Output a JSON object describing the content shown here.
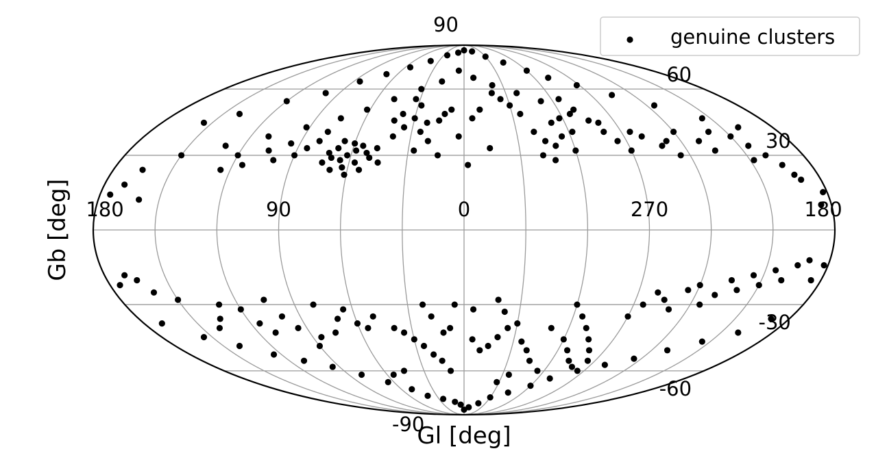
{
  "chart_data": {
    "type": "scatter",
    "projection": "mollweide",
    "xlabel": "Gl [deg]",
    "ylabel": "Gb [deg]",
    "xlim": [
      -180,
      180
    ],
    "ylim": [
      -90,
      90
    ],
    "grid": true,
    "legend_position": "top-right",
    "x_tick_labels": [
      {
        "lon": 180,
        "label": "180"
      },
      {
        "lon": 90,
        "label": "90"
      },
      {
        "lon": 0,
        "label": "0"
      },
      {
        "lon": -90,
        "label": "270"
      },
      {
        "lon": -180,
        "label": "180"
      }
    ],
    "y_tick_labels": [
      {
        "lat": 90,
        "label": "90"
      },
      {
        "lat": 60,
        "label": "60"
      },
      {
        "lat": 30,
        "label": "30"
      },
      {
        "lat": -30,
        "label": "-30"
      },
      {
        "lat": -60,
        "label": "-60"
      },
      {
        "lat": -90,
        "label": "-90"
      }
    ],
    "meridians_deg": [
      -150,
      -120,
      -90,
      -60,
      -30,
      0,
      30,
      60,
      90,
      120,
      150
    ],
    "parallels_deg": [
      -60,
      -30,
      0,
      30,
      60
    ],
    "series": [
      {
        "name": "genuine clusters",
        "color": "#000000",
        "marker": "circle",
        "points": [
          [
            0,
            84
          ],
          [
            10,
            82
          ],
          [
            -15,
            83
          ],
          [
            25,
            80
          ],
          [
            -30,
            79
          ],
          [
            40,
            76
          ],
          [
            -45,
            75
          ],
          [
            55,
            72
          ],
          [
            -60,
            70
          ],
          [
            70,
            68
          ],
          [
            -72,
            66
          ],
          [
            85,
            64
          ],
          [
            -88,
            62
          ],
          [
            100,
            58
          ],
          [
            -105,
            57
          ],
          [
            120,
            54
          ],
          [
            -125,
            52
          ],
          [
            140,
            48
          ],
          [
            -145,
            46
          ],
          [
            155,
            44
          ],
          [
            -160,
            42
          ],
          [
            5,
            70
          ],
          [
            -8,
            66
          ],
          [
            18,
            64
          ],
          [
            -22,
            62
          ],
          [
            32,
            60
          ],
          [
            -38,
            58
          ],
          [
            48,
            55
          ],
          [
            -52,
            54
          ],
          [
            62,
            50
          ],
          [
            -66,
            48
          ],
          [
            75,
            46
          ],
          [
            -80,
            44
          ],
          [
            92,
            42
          ],
          [
            -95,
            40
          ],
          [
            110,
            38
          ],
          [
            -112,
            36
          ],
          [
            130,
            34
          ],
          [
            -135,
            32
          ],
          [
            150,
            30
          ],
          [
            -152,
            28
          ],
          [
            165,
            24
          ],
          [
            -168,
            22
          ],
          [
            60,
            35
          ],
          [
            58,
            32
          ],
          [
            62,
            30
          ],
          [
            65,
            28
          ],
          [
            55,
            34
          ],
          [
            52,
            31
          ],
          [
            68,
            33
          ],
          [
            70,
            29
          ],
          [
            57,
            27
          ],
          [
            63,
            25
          ],
          [
            66,
            36
          ],
          [
            72,
            31
          ],
          [
            50,
            29
          ],
          [
            47,
            33
          ],
          [
            74,
            27
          ],
          [
            61,
            22
          ],
          [
            54,
            24
          ],
          [
            69,
            24
          ],
          [
            45,
            27
          ],
          [
            40,
            38
          ],
          [
            35,
            42
          ],
          [
            42,
            45
          ],
          [
            38,
            48
          ],
          [
            30,
            46
          ],
          [
            28,
            52
          ],
          [
            33,
            55
          ],
          [
            25,
            40
          ],
          [
            22,
            44
          ],
          [
            80,
            36
          ],
          [
            85,
            33
          ],
          [
            78,
            40
          ],
          [
            90,
            30
          ],
          [
            95,
            35
          ],
          [
            100,
            28
          ],
          [
            105,
            32
          ],
          [
            115,
            26
          ],
          [
            120,
            30
          ],
          [
            125,
            24
          ],
          [
            -40,
            40
          ],
          [
            -45,
            36
          ],
          [
            -50,
            34
          ],
          [
            -42,
            30
          ],
          [
            -55,
            38
          ],
          [
            -60,
            32
          ],
          [
            -48,
            28
          ],
          [
            -52,
            44
          ],
          [
            -58,
            46
          ],
          [
            -62,
            40
          ],
          [
            -35,
            48
          ],
          [
            -30,
            52
          ],
          [
            -25,
            55
          ],
          [
            -20,
            58
          ],
          [
            -65,
            55
          ],
          [
            -70,
            50
          ],
          [
            -75,
            45
          ],
          [
            -80,
            40
          ],
          [
            -85,
            36
          ],
          [
            -90,
            32
          ],
          [
            -100,
            38
          ],
          [
            -108,
            34
          ],
          [
            -115,
            30
          ],
          [
            -120,
            40
          ],
          [
            -130,
            36
          ],
          [
            -140,
            40
          ],
          [
            -150,
            38
          ],
          [
            -155,
            34
          ],
          [
            -160,
            30
          ],
          [
            -165,
            26
          ],
          [
            -170,
            20
          ],
          [
            170,
            18
          ],
          [
            175,
            14
          ],
          [
            -175,
            10
          ],
          [
            -178,
            15
          ],
          [
            160,
            12
          ],
          [
            12,
            48
          ],
          [
            8,
            50
          ],
          [
            15,
            45
          ],
          [
            -5,
            46
          ],
          [
            -10,
            50
          ],
          [
            20,
            36
          ],
          [
            14,
            30
          ],
          [
            -14,
            33
          ],
          [
            -2,
            26
          ],
          [
            3,
            38
          ],
          [
            27,
            32
          ],
          [
            0,
            -84
          ],
          [
            5,
            -80
          ],
          [
            -8,
            -82
          ],
          [
            12,
            -78
          ],
          [
            -20,
            -79
          ],
          [
            25,
            -76
          ],
          [
            -30,
            -75
          ],
          [
            40,
            -74
          ],
          [
            -45,
            -72
          ],
          [
            50,
            -70
          ],
          [
            -60,
            -68
          ],
          [
            65,
            -66
          ],
          [
            -70,
            -64
          ],
          [
            80,
            -62
          ],
          [
            -85,
            -60
          ],
          [
            95,
            -58
          ],
          [
            -100,
            -57
          ],
          [
            110,
            -55
          ],
          [
            -115,
            -54
          ],
          [
            125,
            -52
          ],
          [
            -130,
            -50
          ],
          [
            140,
            -48
          ],
          [
            -145,
            -46
          ],
          [
            155,
            -44
          ],
          [
            -160,
            -42
          ],
          [
            170,
            -38
          ],
          [
            -170,
            -36
          ],
          [
            10,
            -60
          ],
          [
            15,
            -55
          ],
          [
            20,
            -52
          ],
          [
            25,
            -48
          ],
          [
            30,
            -45
          ],
          [
            35,
            -42
          ],
          [
            40,
            -40
          ],
          [
            8,
            -40
          ],
          [
            12,
            -42
          ],
          [
            -5,
            -45
          ],
          [
            -10,
            -50
          ],
          [
            -15,
            -48
          ],
          [
            -20,
            -44
          ],
          [
            -25,
            -40
          ],
          [
            -30,
            -38
          ],
          [
            -35,
            -46
          ],
          [
            -40,
            -50
          ],
          [
            -45,
            -55
          ],
          [
            5,
            -30
          ],
          [
            -5,
            -32
          ],
          [
            18,
            -35
          ],
          [
            22,
            -30
          ],
          [
            -18,
            -28
          ],
          [
            -22,
            -33
          ],
          [
            50,
            -35
          ],
          [
            55,
            -40
          ],
          [
            60,
            -38
          ],
          [
            65,
            -32
          ],
          [
            70,
            -36
          ],
          [
            75,
            -42
          ],
          [
            80,
            -30
          ],
          [
            85,
            -44
          ],
          [
            90,
            -48
          ],
          [
            95,
            -40
          ],
          [
            100,
            -35
          ],
          [
            105,
            -28
          ],
          [
            110,
            -42
          ],
          [
            115,
            -38
          ],
          [
            120,
            -32
          ],
          [
            130,
            -30
          ],
          [
            135,
            -36
          ],
          [
            140,
            -40
          ],
          [
            150,
            -28
          ],
          [
            160,
            -25
          ],
          [
            165,
            -20
          ],
          [
            170,
            -18
          ],
          [
            175,
            -22
          ],
          [
            -175,
            -20
          ],
          [
            -60,
            -30
          ],
          [
            -65,
            -35
          ],
          [
            -70,
            -40
          ],
          [
            -75,
            -45
          ],
          [
            -80,
            -50
          ],
          [
            -85,
            -55
          ],
          [
            -90,
            -35
          ],
          [
            -95,
            -30
          ],
          [
            -100,
            -25
          ],
          [
            -105,
            -28
          ],
          [
            -110,
            -32
          ],
          [
            -115,
            -24
          ],
          [
            -120,
            -22
          ],
          [
            -125,
            -30
          ],
          [
            -130,
            -26
          ],
          [
            -135,
            -20
          ],
          [
            -140,
            -24
          ],
          [
            -145,
            -18
          ],
          [
            -150,
            -22
          ],
          [
            -155,
            -16
          ],
          [
            -160,
            -20
          ],
          [
            -165,
            -14
          ],
          [
            -170,
            -12
          ],
          [
            -178,
            -14
          ],
          [
            -60,
            -45
          ],
          [
            -66,
            -50
          ],
          [
            -72,
            -55
          ],
          [
            -78,
            -58
          ],
          [
            -50,
            -40
          ],
          [
            -55,
            -60
          ],
          [
            45,
            -60
          ],
          [
            55,
            -62
          ],
          [
            -35,
            -62
          ],
          [
            -28,
            -66
          ]
        ]
      }
    ]
  }
}
